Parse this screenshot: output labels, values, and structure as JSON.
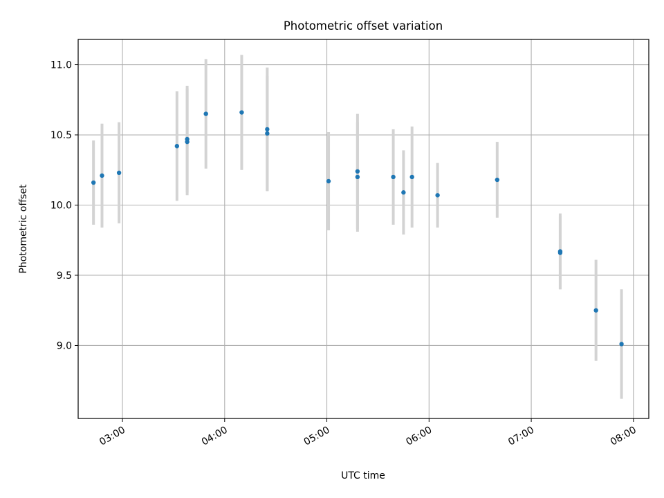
{
  "chart_data": {
    "type": "scatter",
    "title": "Photometric offset variation",
    "xlabel": "UTC time",
    "ylabel": "Photometric offset",
    "x_tick_labels": [
      "03:00",
      "04:00",
      "05:00",
      "06:00",
      "07:00",
      "08:00"
    ],
    "y_tick_labels": [
      "9.0",
      "9.5",
      "10.0",
      "10.5",
      "11.0"
    ],
    "xlim": [
      "02:34",
      "08:09"
    ],
    "ylim": [
      8.48,
      11.18
    ],
    "grid": true,
    "colors": {
      "point": "#1f77b4",
      "errorbar": "#d3d3d3",
      "grid": "#b0b0b0"
    },
    "series": [
      {
        "points": [
          {
            "x": "02:43",
            "y": 10.16,
            "yerr": 0.3
          },
          {
            "x": "02:48",
            "y": 10.21,
            "yerr": 0.37
          },
          {
            "x": "02:58",
            "y": 10.23,
            "yerr": 0.36
          },
          {
            "x": "03:32",
            "y": 10.42,
            "yerr": 0.39
          },
          {
            "x": "03:38",
            "y": 10.45,
            "yerr": 0.38
          },
          {
            "x": "03:38",
            "y": 10.47,
            "yerr": 0.38
          },
          {
            "x": "03:49",
            "y": 10.65,
            "yerr": 0.39
          },
          {
            "x": "04:10",
            "y": 10.66,
            "yerr": 0.41
          },
          {
            "x": "04:25",
            "y": 10.54,
            "yerr": 0.44
          },
          {
            "x": "04:25",
            "y": 10.51,
            "yerr": 0.41
          },
          {
            "x": "05:01",
            "y": 10.17,
            "yerr": 0.35
          },
          {
            "x": "05:18",
            "y": 10.24,
            "yerr": 0.41
          },
          {
            "x": "05:18",
            "y": 10.2,
            "yerr": 0.39
          },
          {
            "x": "05:39",
            "y": 10.2,
            "yerr": 0.34
          },
          {
            "x": "05:45",
            "y": 10.09,
            "yerr": 0.3
          },
          {
            "x": "05:50",
            "y": 10.2,
            "yerr": 0.36
          },
          {
            "x": "06:05",
            "y": 10.07,
            "yerr": 0.23
          },
          {
            "x": "06:40",
            "y": 10.18,
            "yerr": 0.27
          },
          {
            "x": "07:17",
            "y": 9.67,
            "yerr": 0.27
          },
          {
            "x": "07:17",
            "y": 9.66,
            "yerr": 0.26
          },
          {
            "x": "07:38",
            "y": 9.25,
            "yerr": 0.36
          },
          {
            "x": "07:53",
            "y": 9.01,
            "yerr": 0.39
          }
        ]
      }
    ]
  }
}
